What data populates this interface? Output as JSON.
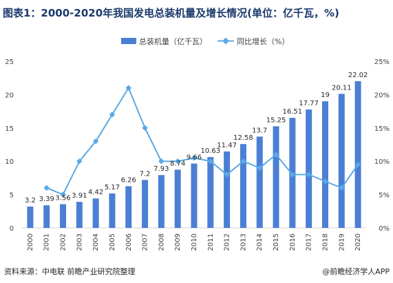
{
  "chart_data": {
    "type": "bar",
    "title": "图表1：2000-2020年我国发电总装机量及增长情况(单位：亿千瓦，%)",
    "categories": [
      "2000",
      "2001",
      "2002",
      "2003",
      "2004",
      "2005",
      "2006",
      "2007",
      "2008",
      "2009",
      "2010",
      "2011",
      "2012",
      "2013",
      "2014",
      "2015",
      "2016",
      "2017",
      "2018",
      "2019",
      "2020"
    ],
    "series": [
      {
        "name": "总装机量（亿千瓦）",
        "kind": "bar",
        "axis": "left",
        "color": "#4a7fd4",
        "values": [
          3.2,
          3.39,
          3.56,
          3.91,
          4.42,
          5.17,
          6.26,
          7.2,
          7.93,
          8.74,
          9.66,
          10.63,
          11.47,
          12.58,
          13.7,
          15.25,
          16.51,
          17.77,
          19,
          20.11,
          22.02
        ],
        "labels": [
          "3.2",
          "3.39",
          "3.56",
          "3.91",
          "4.42",
          "5.17",
          "6.26",
          "7.2",
          "7.93",
          "8.74",
          "9.66",
          "10.63",
          "11.47",
          "12.58",
          "13.7",
          "15.25",
          "16.51",
          "17.77",
          "19",
          "20.11",
          "22.02"
        ]
      },
      {
        "name": "同比增长（%）",
        "kind": "line",
        "axis": "right",
        "color": "#5aa9e6",
        "values": [
          null,
          6,
          5,
          10,
          13,
          17,
          21,
          15,
          10,
          10,
          10.5,
          10,
          8,
          10,
          9,
          11,
          8,
          8,
          7,
          6,
          9.5
        ]
      }
    ],
    "y_left": {
      "min": 0,
      "max": 25,
      "ticks": [
        "0",
        "5",
        "10",
        "15",
        "20",
        "25"
      ]
    },
    "y_right": {
      "min": 0,
      "max": 25,
      "ticks": [
        "0%",
        "5%",
        "10%",
        "15%",
        "20%",
        "25%"
      ]
    },
    "legend_position": "top",
    "grid": false
  },
  "footer": {
    "source": "资料来源：中电联 前瞻产业研究院整理",
    "brand": "@前瞻经济学人APP"
  }
}
